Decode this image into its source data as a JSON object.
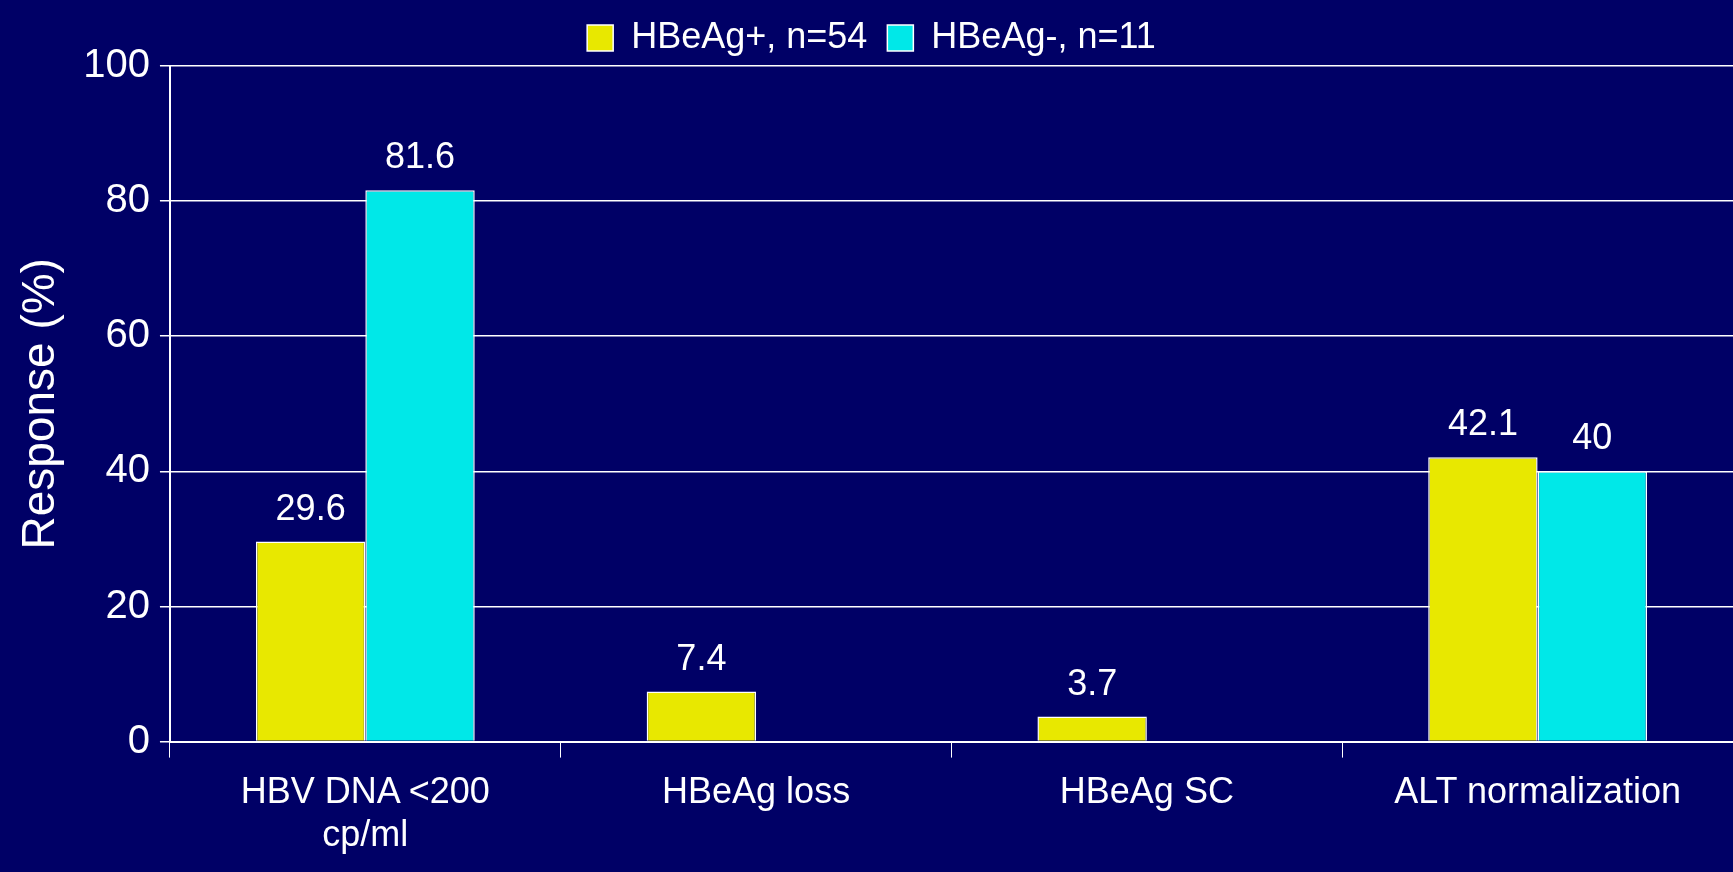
{
  "chart_data": {
    "type": "bar",
    "ylabel": "Response (%)",
    "categories": [
      "HBV DNA <200 cp/ml",
      "HBeAg loss",
      "HBeAg SC",
      "ALT normalization"
    ],
    "series": [
      {
        "name": "HBeAg+, n=54",
        "color": "#e8e800",
        "values": [
          29.6,
          7.4,
          3.7,
          42.1
        ]
      },
      {
        "name": "HBeAg-, n=11",
        "color": "#00e8e8",
        "values": [
          81.6,
          null,
          null,
          40
        ]
      }
    ],
    "ylim": [
      0,
      100
    ],
    "yticks": [
      0,
      20,
      40,
      60,
      80,
      100
    ],
    "grid": "y",
    "legend": "top",
    "data_labels": true
  }
}
